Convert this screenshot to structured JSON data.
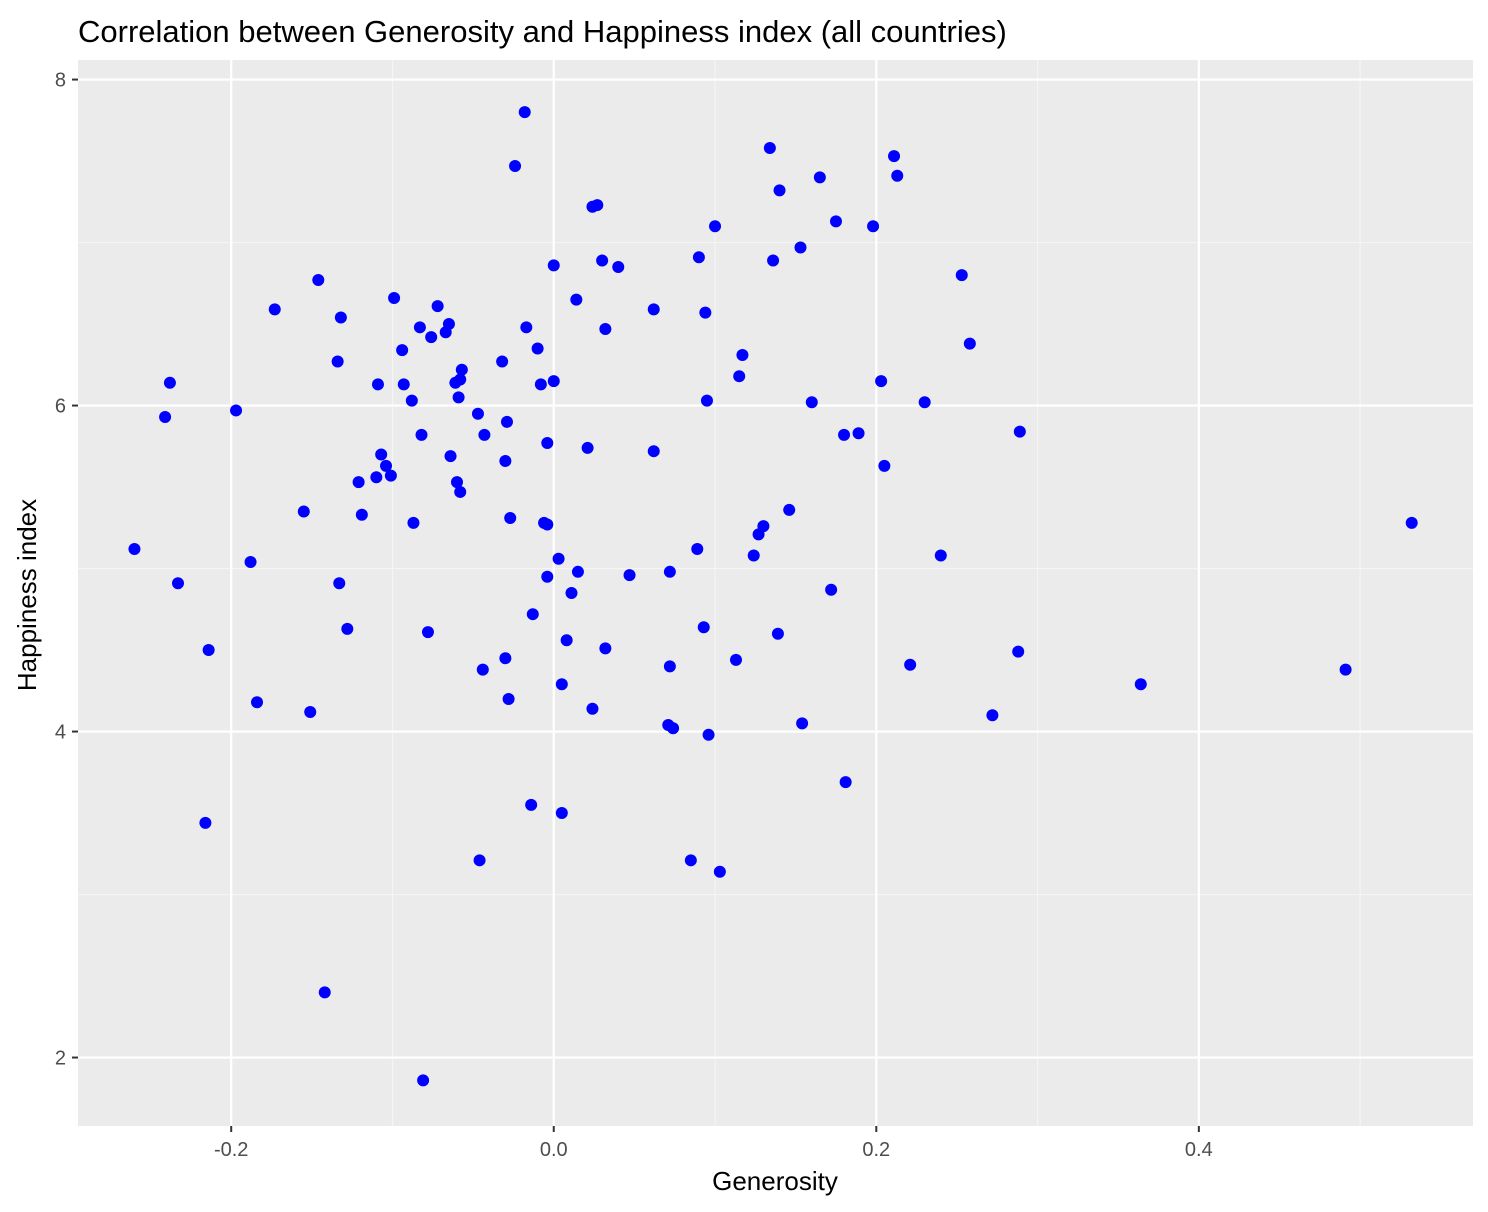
{
  "chart_data": {
    "type": "scatter",
    "title": "Correlation between Generosity and Happiness index (all countries)",
    "xlabel": "Generosity",
    "ylabel": "Happiness index",
    "xlim": [
      -0.295,
      0.57
    ],
    "ylim": [
      1.58,
      8.12
    ],
    "x_major_ticks": [
      -0.2,
      0.0,
      0.2,
      0.4
    ],
    "x_tick_labels": [
      "-0.2",
      "0.0",
      "0.2",
      "0.4"
    ],
    "x_minor_ticks": [
      -0.1,
      0.1,
      0.3,
      0.5
    ],
    "y_major_ticks": [
      2,
      4,
      6,
      8
    ],
    "y_tick_labels": [
      "2",
      "4",
      "6",
      "8"
    ],
    "y_minor_ticks": [
      3,
      5,
      7
    ],
    "grid": true,
    "legend": "none",
    "colors": {
      "point": "#0000ff",
      "panel": "#ebebeb",
      "grid_major": "#ffffff",
      "grid_minor": "#f5f5f5",
      "tick": "#333333",
      "tick_label": "#4d4d4d"
    },
    "x": [
      -0.018,
      -0.024,
      0.134,
      0.211,
      0.213,
      0.165,
      0.14,
      0.027,
      0.024,
      0.175,
      0.198,
      0.1,
      0.153,
      0.136,
      0.09,
      0.03,
      0.0,
      0.04,
      0.253,
      -0.146,
      -0.173,
      -0.099,
      0.014,
      -0.072,
      -0.132,
      0.062,
      0.094,
      -0.083,
      -0.065,
      -0.017,
      -0.067,
      0.032,
      -0.076,
      -0.094,
      -0.01,
      0.258,
      -0.134,
      -0.032,
      0.117,
      -0.057,
      -0.058,
      -0.061,
      -0.238,
      -0.109,
      -0.093,
      0.0,
      -0.008,
      0.115,
      0.203,
      -0.197,
      -0.059,
      0.095,
      -0.088,
      0.16,
      0.23,
      -0.047,
      -0.241,
      -0.029,
      -0.043,
      0.18,
      0.189,
      -0.082,
      0.289,
      -0.004,
      0.021,
      0.062,
      -0.107,
      -0.064,
      0.205,
      -0.03,
      -0.104,
      -0.101,
      -0.11,
      -0.121,
      -0.058,
      -0.06,
      -0.155,
      0.146,
      -0.119,
      -0.027,
      -0.006,
      -0.004,
      0.13,
      -0.087,
      0.127,
      0.532,
      -0.26,
      0.089,
      0.124,
      0.24,
      -0.188,
      0.003,
      0.015,
      0.072,
      -0.004,
      0.047,
      -0.133,
      -0.233,
      0.172,
      0.011,
      -0.013,
      -0.128,
      0.093,
      -0.078,
      0.139,
      0.008,
      -0.214,
      0.032,
      0.288,
      -0.03,
      0.113,
      0.221,
      0.072,
      0.491,
      -0.044,
      0.364,
      0.005,
      -0.184,
      -0.028,
      0.024,
      -0.151,
      0.272,
      0.154,
      0.071,
      0.074,
      0.096,
      0.181,
      -0.216,
      -0.014,
      0.005,
      -0.046,
      0.085,
      0.103,
      -0.142,
      -0.081
    ],
    "y": [
      7.8,
      7.47,
      7.58,
      7.53,
      7.41,
      7.4,
      7.32,
      7.23,
      7.22,
      7.13,
      7.1,
      7.1,
      6.97,
      6.89,
      6.91,
      6.89,
      6.86,
      6.85,
      6.8,
      6.77,
      6.59,
      6.66,
      6.65,
      6.61,
      6.54,
      6.59,
      6.57,
      6.48,
      6.5,
      6.48,
      6.45,
      6.47,
      6.42,
      6.34,
      6.35,
      6.38,
      6.27,
      6.27,
      6.31,
      6.22,
      6.16,
      6.14,
      6.14,
      6.13,
      6.13,
      6.15,
      6.13,
      6.18,
      6.15,
      5.97,
      6.05,
      6.03,
      6.03,
      6.02,
      6.02,
      5.95,
      5.93,
      5.9,
      5.82,
      5.82,
      5.83,
      5.82,
      5.84,
      5.77,
      5.74,
      5.72,
      5.7,
      5.69,
      5.63,
      5.66,
      5.63,
      5.57,
      5.56,
      5.53,
      5.47,
      5.53,
      5.35,
      5.36,
      5.33,
      5.31,
      5.28,
      5.27,
      5.26,
      5.28,
      5.21,
      5.28,
      5.12,
      5.12,
      5.08,
      5.08,
      5.04,
      5.06,
      4.98,
      4.98,
      4.95,
      4.96,
      4.91,
      4.91,
      4.87,
      4.85,
      4.72,
      4.63,
      4.64,
      4.61,
      4.6,
      4.56,
      4.5,
      4.51,
      4.49,
      4.45,
      4.44,
      4.41,
      4.4,
      4.38,
      4.38,
      4.29,
      4.29,
      4.18,
      4.2,
      4.14,
      4.12,
      4.1,
      4.05,
      4.04,
      4.02,
      3.98,
      3.69,
      3.44,
      3.55,
      3.5,
      3.21,
      3.21,
      3.14,
      2.4,
      1.86
    ]
  }
}
